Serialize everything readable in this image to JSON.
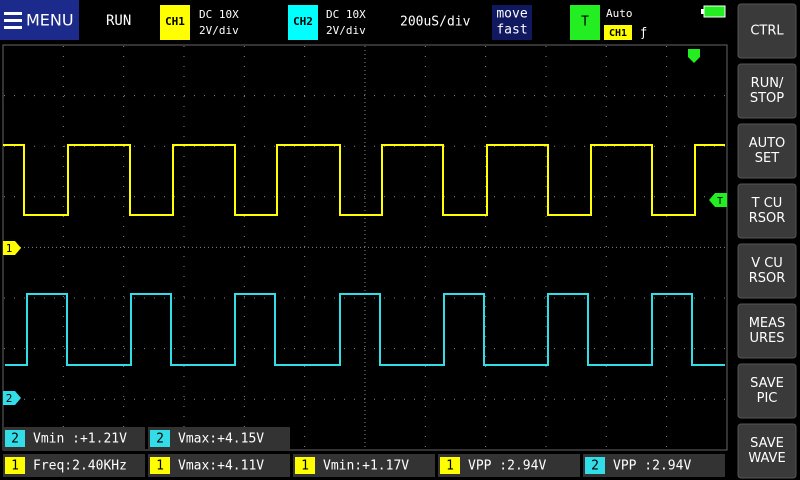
{
  "top_bar": {
    "menu": "MENU",
    "status": "RUN",
    "ch1": {
      "label": "CH1",
      "coupling": "DC 10X",
      "scale": "2V/div"
    },
    "ch2": {
      "label": "CH2",
      "coupling": "DC 10X",
      "scale": "2V/div"
    },
    "timebase": "200uS/div",
    "move_mode": [
      "move",
      "fast"
    ],
    "trigger": {
      "label": "T",
      "mode": "Auto",
      "source": "CH1",
      "edge": "ƒ"
    }
  },
  "markers": {
    "ch1": "1",
    "ch2": "2",
    "trigger": "T"
  },
  "side_buttons": [
    [
      "CTRL"
    ],
    [
      "RUN/",
      "STOP"
    ],
    [
      "AUTO",
      "SET"
    ],
    [
      "T CU",
      "RSOR"
    ],
    [
      "V CU",
      "RSOR"
    ],
    [
      "MEAS",
      "URES"
    ],
    [
      "SAVE",
      "PIC"
    ],
    [
      "SAVE",
      "WAVE"
    ]
  ],
  "measurements": [
    {
      "channel": "2",
      "text": "Vmin :+1.21V"
    },
    {
      "channel": "2",
      "text": "Vmax:+4.15V"
    },
    {
      "channel": "1",
      "text": "Freq:2.40KHz"
    },
    {
      "channel": "1",
      "text": "Vmax:+4.11V"
    },
    {
      "channel": "1",
      "text": "Vmin:+1.17V"
    },
    {
      "channel": "1",
      "text": "VPP :2.94V"
    },
    {
      "channel": "2",
      "text": "VPP :2.94V"
    }
  ]
}
